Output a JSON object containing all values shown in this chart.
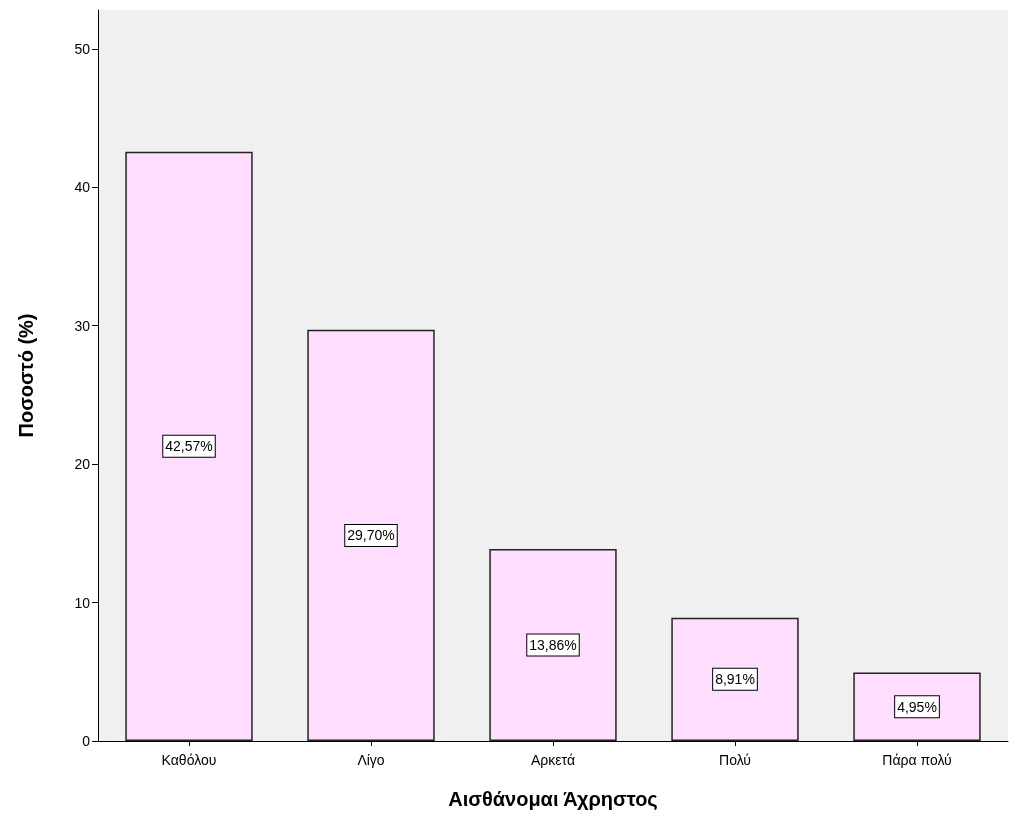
{
  "chart_data": {
    "type": "bar",
    "xlabel": "Αισθάνομαι Άχρηστος",
    "ylabel": "Ποσοστό (%)",
    "categories": [
      "Καθόλου",
      "Λίγο",
      "Αρκετά",
      "Πολύ",
      "Πάρα πολύ"
    ],
    "values": [
      42.57,
      29.7,
      13.86,
      8.91,
      4.95
    ],
    "value_labels": [
      "42,57%",
      "29,70%",
      "13,86%",
      "8,91%",
      "4,95%"
    ],
    "color": "#ffddff",
    "ylim": [
      0,
      52.8
    ],
    "yticks": [
      0,
      10,
      20,
      30,
      40,
      50
    ],
    "grid": false
  }
}
